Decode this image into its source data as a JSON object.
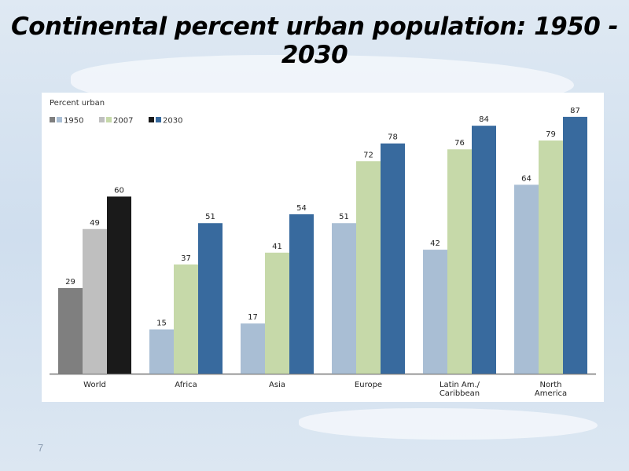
{
  "title": "Continental percent urban population: 1950 - 2030",
  "page_number": "7",
  "chart_data": {
    "type": "bar",
    "title": "",
    "ylabel": "Percent urban",
    "xlabel": "",
    "ylim": [
      0,
      90
    ],
    "grid": false,
    "legend_position": "top-left",
    "legend": [
      "1950",
      "2007",
      "2030"
    ],
    "categories": [
      "World",
      "Africa",
      "Asia",
      "Europe",
      "Latin Am./ Caribbean",
      "North America"
    ],
    "category_lines": [
      [
        "World"
      ],
      [
        "Africa"
      ],
      [
        "Asia"
      ],
      [
        "Europe"
      ],
      [
        "Latin Am./",
        "Caribbean"
      ],
      [
        "North",
        "America"
      ]
    ],
    "series": [
      {
        "name": "1950",
        "values": [
          29,
          15,
          17,
          51,
          42,
          64
        ],
        "color": "#a9bed4",
        "world_color": "#7f7f7f"
      },
      {
        "name": "2007",
        "values": [
          49,
          37,
          41,
          72,
          76,
          79
        ],
        "color": "#c6d9a9",
        "world_color": "#bfbfbf"
      },
      {
        "name": "2030",
        "values": [
          60,
          51,
          54,
          78,
          84,
          87
        ],
        "color": "#386a9e",
        "world_color": "#1a1a1a"
      }
    ]
  }
}
